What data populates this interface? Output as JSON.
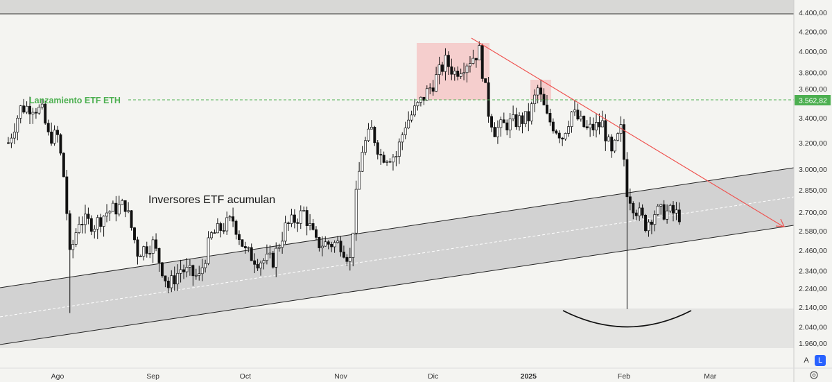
{
  "chart_data": {
    "type": "candlestick",
    "title": "",
    "y_scale": "log",
    "y_ticks": [
      4400,
      4200,
      4000,
      3800,
      3600,
      3400,
      3200,
      3000,
      2850,
      2700,
      2580,
      2460,
      2340,
      2240,
      2140,
      2040,
      1960
    ],
    "y_tick_labels": [
      "4.400,00",
      "4.200,00",
      "4.000,00",
      "3.800,00",
      "3.600,00",
      "3.400,00",
      "3.200,00",
      "3.000,00",
      "2.850,00",
      "2.700,00",
      "2.580,00",
      "2.460,00",
      "2.340,00",
      "2.240,00",
      "2.140,00",
      "2.040,00",
      "1.960,00"
    ],
    "x_tick_labels": [
      "Ago",
      "Sep",
      "Oct",
      "Nov",
      "Dic",
      "2025",
      "Feb",
      "Mar"
    ],
    "x_tick_days": [
      0,
      31,
      61,
      92,
      122,
      153,
      184,
      212
    ],
    "keypoints_day_close": [
      [
        -16,
        3200
      ],
      [
        -12,
        3480
      ],
      [
        -8,
        3500
      ],
      [
        -5,
        3450
      ],
      [
        -3,
        3250
      ],
      [
        0,
        3250
      ],
      [
        2,
        2950
      ],
      [
        3,
        2700
      ],
      [
        4,
        2420
      ],
      [
        7,
        2650
      ],
      [
        12,
        2620
      ],
      [
        16,
        2700
      ],
      [
        22,
        2750
      ],
      [
        26,
        2450
      ],
      [
        31,
        2500
      ],
      [
        36,
        2250
      ],
      [
        40,
        2350
      ],
      [
        46,
        2300
      ],
      [
        50,
        2550
      ],
      [
        57,
        2650
      ],
      [
        61,
        2450
      ],
      [
        65,
        2400
      ],
      [
        70,
        2400
      ],
      [
        74,
        2600
      ],
      [
        80,
        2700
      ],
      [
        84,
        2500
      ],
      [
        92,
        2500
      ],
      [
        95,
        2400
      ],
      [
        97,
        2800
      ],
      [
        99,
        3150
      ],
      [
        102,
        3300
      ],
      [
        105,
        3100
      ],
      [
        110,
        3100
      ],
      [
        113,
        3350
      ],
      [
        117,
        3500
      ],
      [
        122,
        3700
      ],
      [
        126,
        3900
      ],
      [
        129,
        3800
      ],
      [
        133,
        3900
      ],
      [
        137,
        4000
      ],
      [
        140,
        3450
      ],
      [
        142,
        3300
      ],
      [
        146,
        3350
      ],
      [
        153,
        3400
      ],
      [
        156,
        3650
      ],
      [
        159,
        3400
      ],
      [
        164,
        3250
      ],
      [
        167,
        3450
      ],
      [
        172,
        3300
      ],
      [
        177,
        3350
      ],
      [
        180,
        3100
      ],
      [
        183,
        3300
      ],
      [
        185,
        2850
      ],
      [
        187,
        2750
      ],
      [
        191,
        2620
      ],
      [
        194,
        2700
      ],
      [
        199,
        2700
      ],
      [
        202,
        2680
      ]
    ],
    "price_label": "3.562,82",
    "price_line_value": 3562.82,
    "annotations": {
      "etf_launch": "Lanzamiento ETF ETH",
      "accumulation": "Inversores ETF acumulan"
    },
    "colors": {
      "up": "#ffffff",
      "down": "#111111",
      "green": "#4caf50",
      "red": "#ef5350",
      "pink": "#f4c7c7",
      "channel": "#d2d2d2"
    }
  },
  "controls": {
    "auto": "A",
    "log": "L"
  }
}
